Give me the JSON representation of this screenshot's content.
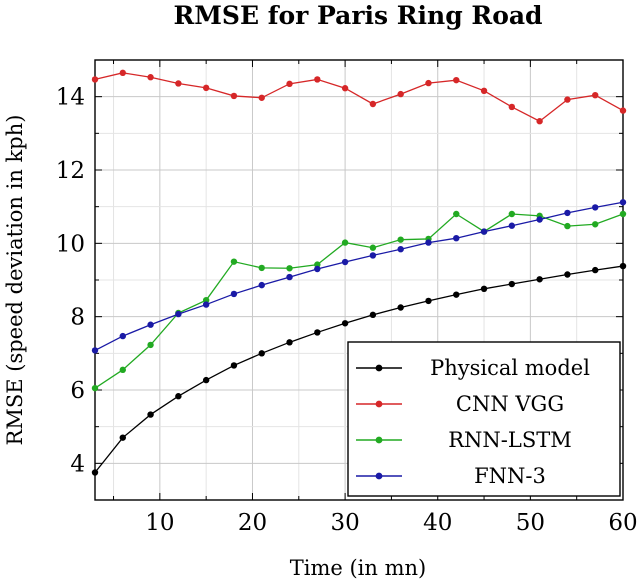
{
  "chart_data": {
    "type": "line",
    "title": "RMSE for Paris Ring Road",
    "xlabel": "Time (in mn)",
    "ylabel": "RMSE (speed deviation in kph)",
    "xlim": [
      3,
      60
    ],
    "ylim": [
      3,
      15
    ],
    "xticks": [
      10,
      20,
      30,
      40,
      50,
      60
    ],
    "yticks": [
      4,
      6,
      8,
      10,
      12,
      14
    ],
    "grid": true,
    "legend_position": "bottom-right",
    "x": [
      3,
      6,
      9,
      12,
      15,
      18,
      21,
      24,
      27,
      30,
      33,
      36,
      39,
      42,
      45,
      48,
      51,
      54,
      57,
      60
    ],
    "series": [
      {
        "name": "Physical model",
        "color": "#000000",
        "values": [
          3.75,
          4.7,
          5.33,
          5.83,
          6.27,
          6.67,
          7.0,
          7.3,
          7.57,
          7.82,
          8.05,
          8.25,
          8.43,
          8.6,
          8.76,
          8.89,
          9.02,
          9.15,
          9.27,
          9.38
        ]
      },
      {
        "name": "CNN VGG",
        "color": "#d62728",
        "values": [
          14.47,
          14.65,
          14.53,
          14.36,
          14.24,
          14.02,
          13.97,
          14.35,
          14.47,
          14.23,
          13.8,
          14.07,
          14.37,
          14.45,
          14.16,
          13.72,
          13.33,
          13.92,
          14.04,
          13.62
        ]
      },
      {
        "name": "RNN-LSTM",
        "color": "#22aa22",
        "values": [
          6.05,
          6.55,
          7.23,
          8.1,
          8.45,
          9.5,
          9.33,
          9.32,
          9.42,
          10.02,
          9.88,
          10.1,
          10.12,
          10.8,
          10.32,
          10.8,
          10.75,
          10.47,
          10.52,
          10.8
        ]
      },
      {
        "name": "FNN-3",
        "color": "#1a1aa6",
        "values": [
          7.08,
          7.47,
          7.78,
          8.07,
          8.33,
          8.62,
          8.86,
          9.08,
          9.3,
          9.49,
          9.67,
          9.84,
          10.02,
          10.14,
          10.32,
          10.48,
          10.65,
          10.83,
          10.98,
          11.12
        ]
      }
    ]
  }
}
